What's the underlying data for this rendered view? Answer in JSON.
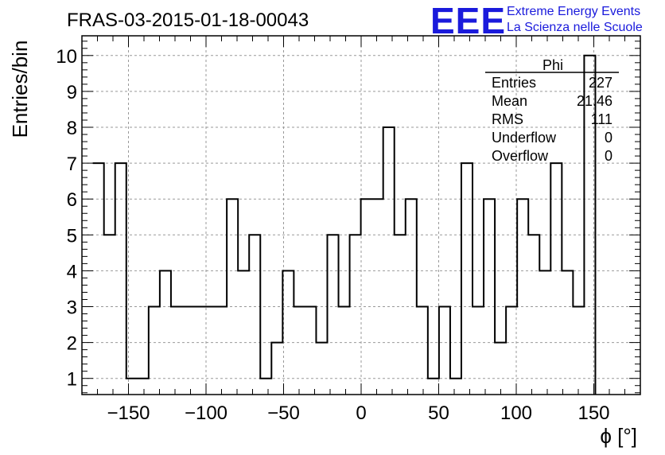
{
  "header": {
    "run_title": "FRAS-03-2015-01-18-00043",
    "logo_text": "EEE",
    "logo_line1": "Extreme Energy Events",
    "logo_line2": "La Scienza nelle Scuole",
    "logo_color": "#1a1adc"
  },
  "stats_box": {
    "title": "Phi",
    "rows": [
      {
        "label": "Entries",
        "value": "227"
      },
      {
        "label": "Mean",
        "value": "21.46"
      },
      {
        "label": "RMS",
        "value": "111"
      },
      {
        "label": "Underflow",
        "value": "0"
      },
      {
        "label": "Overflow",
        "value": "0"
      }
    ]
  },
  "chart_data": {
    "type": "histogram",
    "title": "FRAS-03-2015-01-18-00043",
    "xlabel": "ϕ [°]",
    "ylabel": "Entries/bin",
    "xlim": [
      -180,
      180
    ],
    "ylim": [
      0.55,
      10.55
    ],
    "grid": true,
    "bin_width": 7.2,
    "bin_edges_start": -173,
    "x_ticks": [
      -150,
      -100,
      -50,
      0,
      50,
      100,
      150
    ],
    "x_tick_labels": [
      "−150",
      "−100",
      "−50",
      "0",
      "50",
      "100",
      "150"
    ],
    "y_ticks": [
      1,
      2,
      3,
      4,
      5,
      6,
      7,
      8,
      9,
      10
    ],
    "y_tick_labels": [
      "1",
      "2",
      "3",
      "4",
      "5",
      "6",
      "7",
      "8",
      "9",
      "10"
    ],
    "values": [
      7,
      5,
      7,
      1,
      1,
      3,
      4,
      3,
      3,
      3,
      3,
      3,
      6,
      4,
      5,
      1,
      2,
      4,
      3,
      3,
      2,
      5,
      3,
      5,
      6,
      6,
      8,
      5,
      6,
      3,
      1,
      3,
      1,
      7,
      3,
      6,
      2,
      3,
      6,
      5,
      4,
      7,
      4,
      3,
      10
    ]
  }
}
